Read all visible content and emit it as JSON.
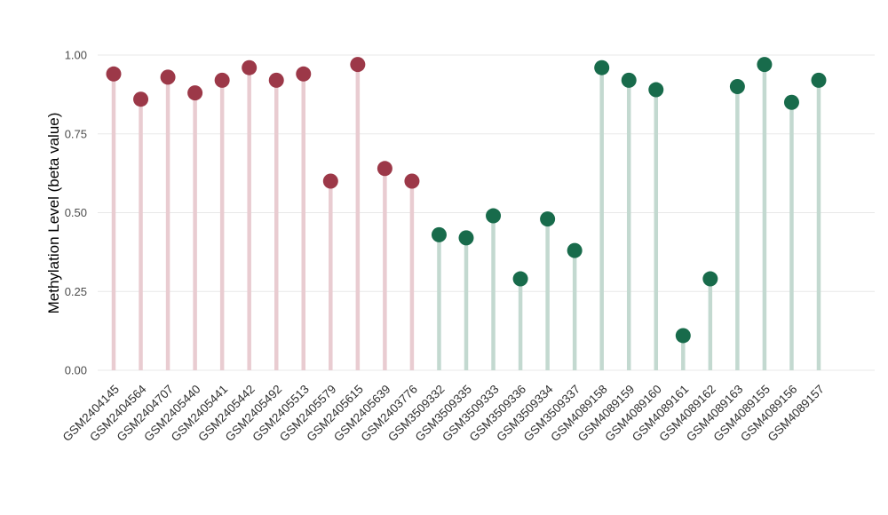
{
  "chart_data": {
    "type": "lollipop",
    "title": "",
    "xlabel": "",
    "ylabel": "Methylation Level (beta value)",
    "ylim": [
      0,
      1
    ],
    "yticks": [
      "0.00",
      "0.25",
      "0.50",
      "0.75",
      "1.00"
    ],
    "grid": true,
    "legend": "none",
    "categories": [
      "GSM2404145",
      "GSM2404564",
      "GSM2404707",
      "GSM2405440",
      "GSM2405441",
      "GSM2405442",
      "GSM2405492",
      "GSM2405513",
      "GSM2405579",
      "GSM2405615",
      "GSM2405639",
      "GSM2403776",
      "GSM3509332",
      "GSM3509335",
      "GSM3509333",
      "GSM3509336",
      "GSM3509334",
      "GSM3509337",
      "GSM4089158",
      "GSM4089159",
      "GSM4089160",
      "GSM4089161",
      "GSM4089162",
      "GSM4089163",
      "GSM4089155",
      "GSM4089156",
      "GSM4089157"
    ],
    "values": [
      0.94,
      0.86,
      0.93,
      0.88,
      0.92,
      0.96,
      0.92,
      0.94,
      0.6,
      0.97,
      0.64,
      0.6,
      0.43,
      0.42,
      0.49,
      0.29,
      0.48,
      0.38,
      0.96,
      0.92,
      0.89,
      0.11,
      0.29,
      0.9,
      0.97,
      0.85,
      0.92
    ],
    "point_groups": [
      "red",
      "red",
      "red",
      "red",
      "red",
      "red",
      "red",
      "red",
      "red",
      "red",
      "red",
      "red",
      "green",
      "green",
      "green",
      "green",
      "green",
      "green",
      "green",
      "green",
      "green",
      "green",
      "green",
      "green",
      "green",
      "green",
      "green"
    ],
    "group_colors": {
      "red": {
        "dot": "#9c3848",
        "stem": "#e9ccd1"
      },
      "green": {
        "dot": "#186b4b",
        "stem": "#c3d9d0"
      }
    }
  }
}
